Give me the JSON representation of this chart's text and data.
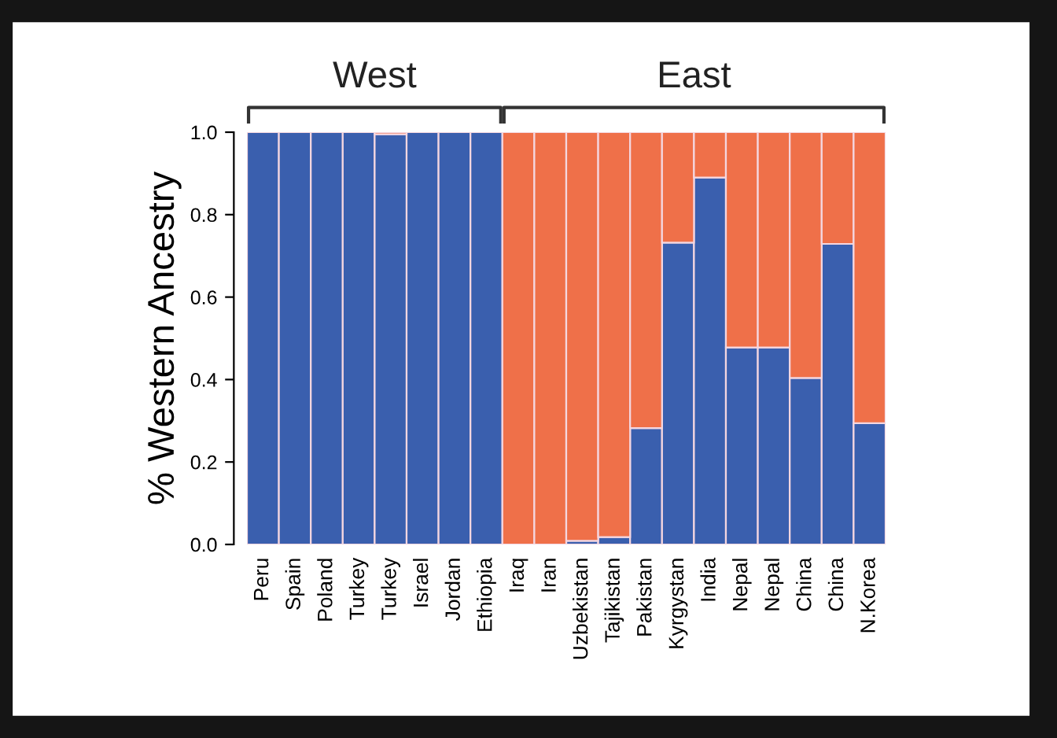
{
  "chart_data": {
    "type": "bar",
    "stacked": true,
    "ylabel": "% Western Ancestry",
    "categories": [
      "Peru",
      "Spain",
      "Poland",
      "Turkey",
      "Turkey",
      "Israel",
      "Jordan",
      "Ethiopia",
      "Iraq",
      "Iran",
      "Uzbekistan",
      "Tajikistan",
      "Pakistan",
      "Kyrgystan",
      "India",
      "Nepal",
      "Nepal",
      "China",
      "China",
      "N.Korea"
    ],
    "series": [
      {
        "color": "#3a5fae",
        "values": [
          1,
          1,
          1,
          1,
          0.995,
          1,
          1,
          1,
          0,
          0,
          0.009,
          0.018,
          0.282,
          0.732,
          0.89,
          0.478,
          0.478,
          0.404,
          0.729,
          0.294
        ]
      },
      {
        "color": "#ef7049",
        "values": [
          0,
          0,
          0,
          0,
          0.005,
          0,
          0,
          0,
          1,
          1,
          0.991,
          0.982,
          0.718,
          0.268,
          0.11,
          0.522,
          0.522,
          0.596,
          0.271,
          0.706
        ]
      }
    ],
    "ylim": [
      0,
      1
    ],
    "yticks": [
      {
        "value": 0,
        "label": "0.0"
      },
      {
        "value": 0.2,
        "label": "0.2"
      },
      {
        "value": 0.4,
        "label": "0.4"
      },
      {
        "value": 0.6,
        "label": "0.6"
      },
      {
        "value": 0.8,
        "label": "0.8"
      },
      {
        "value": 1,
        "label": "1.0"
      }
    ],
    "grid": false,
    "legend": false,
    "annotations": [
      "West",
      "East"
    ]
  }
}
